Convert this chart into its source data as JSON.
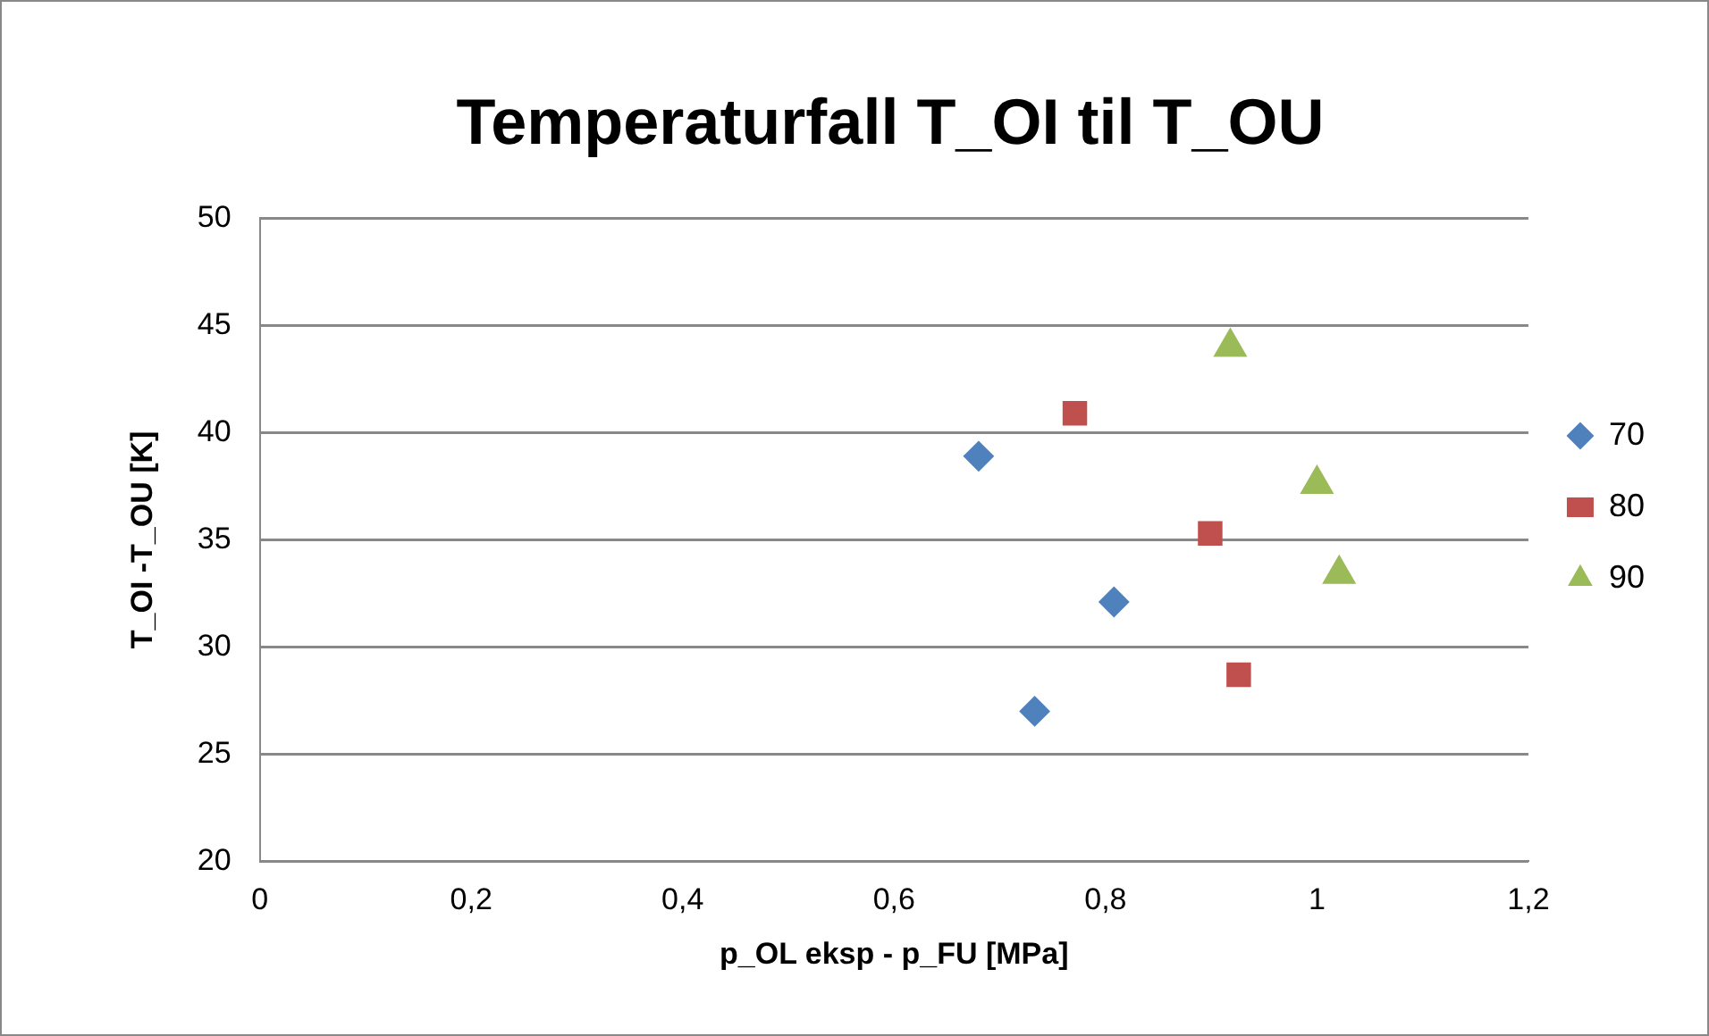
{
  "chart_data": {
    "type": "scatter",
    "title": "Temperaturfall T_OI til T_OU",
    "xlabel": "p_OL eksp - p_FU [MPa]",
    "ylabel": "T_OI -T_OU [K]",
    "xlim": [
      0,
      1.2
    ],
    "xticks": [
      0,
      {
        "value": 0.2,
        "label": "0,2"
      },
      {
        "value": 0.4,
        "label": "0,4"
      },
      {
        "value": 0.6,
        "label": "0,6"
      },
      {
        "value": 0.8,
        "label": "0,8"
      },
      1,
      {
        "value": 1.2,
        "label": "1,2"
      }
    ],
    "ylim": [
      20,
      50
    ],
    "yticks": [
      20,
      25,
      30,
      35,
      40,
      45,
      50
    ],
    "grid": "y",
    "legend": "right",
    "series": [
      {
        "name": "70",
        "color": "#4f81bd",
        "marker": "diamond",
        "x": [
          0.68,
          0.808,
          0.733
        ],
        "values": [
          38.9,
          32.1,
          27.0
        ]
      },
      {
        "name": "80",
        "color": "#c0504d",
        "marker": "square",
        "x": [
          0.771,
          0.899,
          0.926
        ],
        "values": [
          40.9,
          35.3,
          28.7
        ]
      },
      {
        "name": "90",
        "color": "#9bbb59",
        "marker": "triangle",
        "x": [
          0.918,
          1.0,
          1.021
        ],
        "values": [
          44.0,
          37.6,
          33.4
        ]
      }
    ]
  }
}
